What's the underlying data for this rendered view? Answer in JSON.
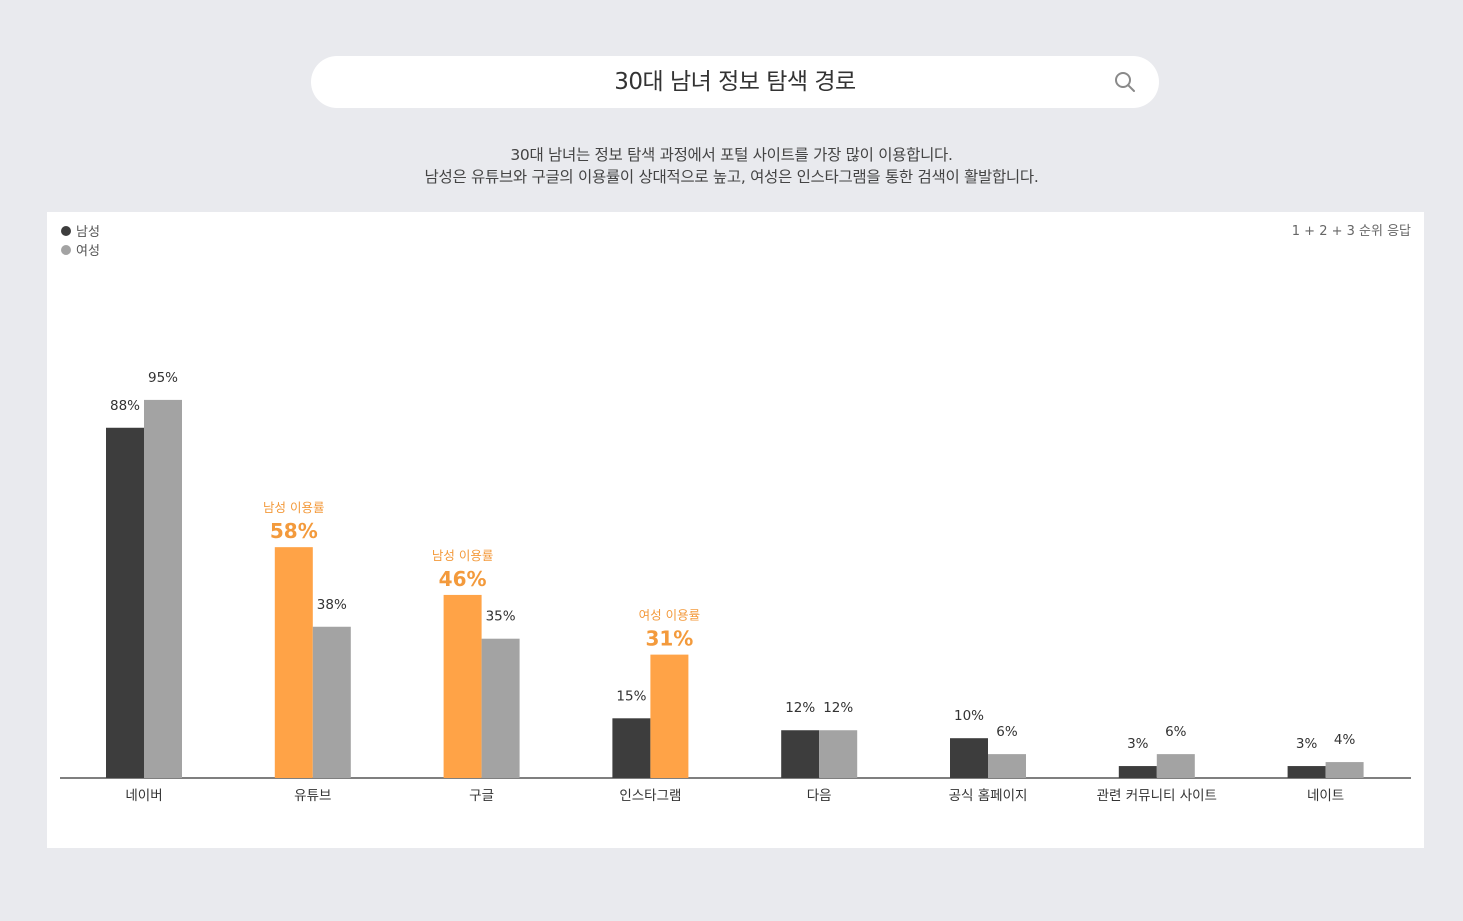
{
  "search": {
    "title": "30대 남녀 정보 탐색 경로",
    "icon": "search-icon"
  },
  "description": {
    "line1": "30대 남녀는 정보 탐색 과정에서 포털 사이트를 가장 많이 이용합니다.",
    "line2": "남성은 유튜브와 구글의 이용률이 상대적으로 높고, 여성은 인스타그램을 통한 검색이 활발합니다."
  },
  "colors": {
    "background": "#e9eaee",
    "male": "#3d3d3d",
    "female": "#a3a3a3",
    "highlight": "#ffa347",
    "highlight_text": "#f39a3c"
  },
  "chart_data": {
    "type": "bar",
    "note": "1 + 2 + 3 순위 응답",
    "legend_position": "top-left",
    "grid": false,
    "ylim": [
      0,
      100
    ],
    "categories": [
      "네이버",
      "유튜브",
      "구글",
      "인스타그램",
      "다음",
      "공식 홈페이지",
      "관련 커뮤니티 사이트",
      "네이트"
    ],
    "series": [
      {
        "name": "남성",
        "values": [
          88,
          58,
          46,
          15,
          12,
          10,
          3,
          3
        ]
      },
      {
        "name": "여성",
        "values": [
          95,
          38,
          35,
          31,
          12,
          6,
          6,
          4
        ]
      }
    ],
    "value_labels": {
      "남성": [
        "88%",
        "58%",
        "46%",
        "15%",
        "12%",
        "10%",
        "3%",
        "3%"
      ],
      "여성": [
        "95%",
        "38%",
        "35%",
        "31%",
        "12%",
        "6%",
        "6%",
        "4%"
      ]
    },
    "highlights": [
      {
        "category_index": 1,
        "series": "남성",
        "label": "남성 이용률"
      },
      {
        "category_index": 2,
        "series": "남성",
        "label": "남성 이용률"
      },
      {
        "category_index": 3,
        "series": "여성",
        "label": "여성 이용률"
      }
    ]
  }
}
